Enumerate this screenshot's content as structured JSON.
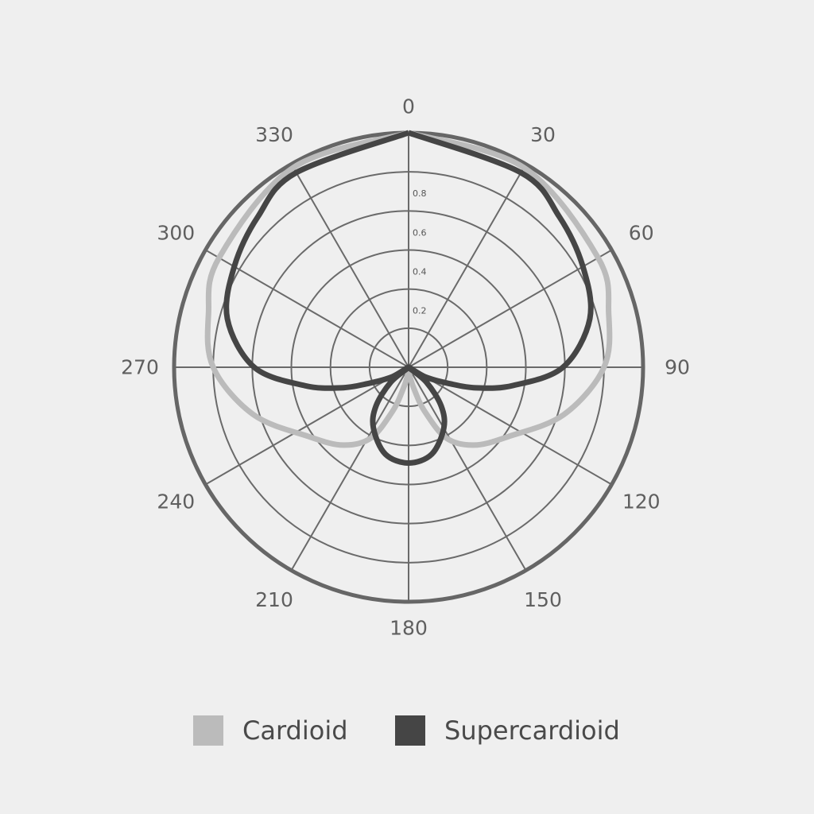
{
  "chart_data": {
    "type": "polar-line",
    "angle_ticks": [
      "0",
      "30",
      "60",
      "90",
      "120",
      "150",
      "180",
      "210",
      "240",
      "270",
      "300",
      "330"
    ],
    "radial_ticks": [
      "0.2",
      "0.4",
      "0.6",
      "0.8"
    ],
    "rlim": [
      0,
      1.2
    ],
    "grid": true,
    "legend_position": "bottom",
    "series": [
      {
        "name": "Cardioid",
        "color": "#bbbbbb",
        "points": [
          [
            0,
            1.2
          ],
          [
            30,
            1.18
          ],
          [
            60,
            1.12
          ],
          [
            75,
            1.06
          ],
          [
            90,
            1.0
          ],
          [
            107,
            0.83
          ],
          [
            125,
            0.62
          ],
          [
            140,
            0.52
          ],
          [
            152,
            0.41
          ],
          [
            160,
            0.24
          ],
          [
            165,
            0.13
          ],
          [
            172,
            0.05
          ],
          [
            180,
            0
          ],
          [
            188,
            0.05
          ],
          [
            195,
            0.13
          ],
          [
            200,
            0.24
          ],
          [
            208,
            0.41
          ],
          [
            220,
            0.52
          ],
          [
            235,
            0.62
          ],
          [
            253,
            0.83
          ],
          [
            270,
            1.0
          ],
          [
            285,
            1.06
          ],
          [
            300,
            1.12
          ],
          [
            330,
            1.18
          ],
          [
            360,
            1.2
          ]
        ]
      },
      {
        "name": "Supercardioid",
        "color": "#454545",
        "points": [
          [
            0,
            1.2
          ],
          [
            30,
            1.15
          ],
          [
            45,
            1.09
          ],
          [
            60,
            1.03
          ],
          [
            75,
            0.96
          ],
          [
            90,
            0.79
          ],
          [
            100,
            0.54
          ],
          [
            107,
            0.36
          ],
          [
            112,
            0.22
          ],
          [
            120,
            0.1
          ],
          [
            125,
            0
          ],
          [
            130,
            0.12
          ],
          [
            140,
            0.26
          ],
          [
            150,
            0.36
          ],
          [
            165,
            0.46
          ],
          [
            180,
            0.49
          ],
          [
            195,
            0.46
          ],
          [
            210,
            0.36
          ],
          [
            220,
            0.26
          ],
          [
            230,
            0.12
          ],
          [
            235,
            0
          ],
          [
            240,
            0.1
          ],
          [
            248,
            0.22
          ],
          [
            253,
            0.36
          ],
          [
            260,
            0.54
          ],
          [
            270,
            0.79
          ],
          [
            285,
            0.96
          ],
          [
            300,
            1.03
          ],
          [
            315,
            1.09
          ],
          [
            330,
            1.15
          ],
          [
            360,
            1.2
          ]
        ]
      }
    ]
  }
}
